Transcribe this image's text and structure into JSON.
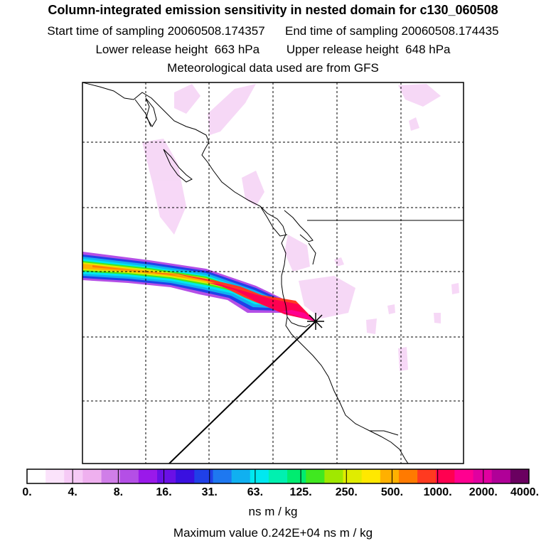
{
  "title": "Column-integrated emission sensitivity in nested domain for c130_060508",
  "sampling": {
    "start_label": "Start time of sampling",
    "start_value": "20060508.174357",
    "end_label": "End time of sampling",
    "end_value": "20060508.174435"
  },
  "release": {
    "lower_label": "Lower release height",
    "lower_value": "663 hPa",
    "upper_label": "Upper release height",
    "upper_value": "648 hPa"
  },
  "met_note": "Meteorological data used are from GFS",
  "colorbar": {
    "ticks": [
      "0.",
      "4.",
      "8.",
      "16.",
      "31.",
      "63.",
      "125.",
      "250.",
      "500.",
      "1000.",
      "2000.",
      "4000."
    ],
    "units": "ns m / kg",
    "colors": [
      "#ffffff",
      "#fbe3fb",
      "#f6caf6",
      "#efb0ef",
      "#d07ee8",
      "#b44fe6",
      "#9a19ea",
      "#6a10e6",
      "#3a10e0",
      "#2040e8",
      "#1e78f0",
      "#10b0f0",
      "#00e8f0",
      "#00f0b0",
      "#00ec70",
      "#40e820",
      "#a0e800",
      "#e0ec00",
      "#ffe800",
      "#ffb000",
      "#ff7a00",
      "#ff3a20",
      "#ff0050",
      "#ff0090",
      "#e000a0",
      "#b00098",
      "#6a0060"
    ]
  },
  "max_value_label": "Maximum value  0.242E+04 ns m / kg",
  "receptor_icon": "receptor-star-icon"
}
